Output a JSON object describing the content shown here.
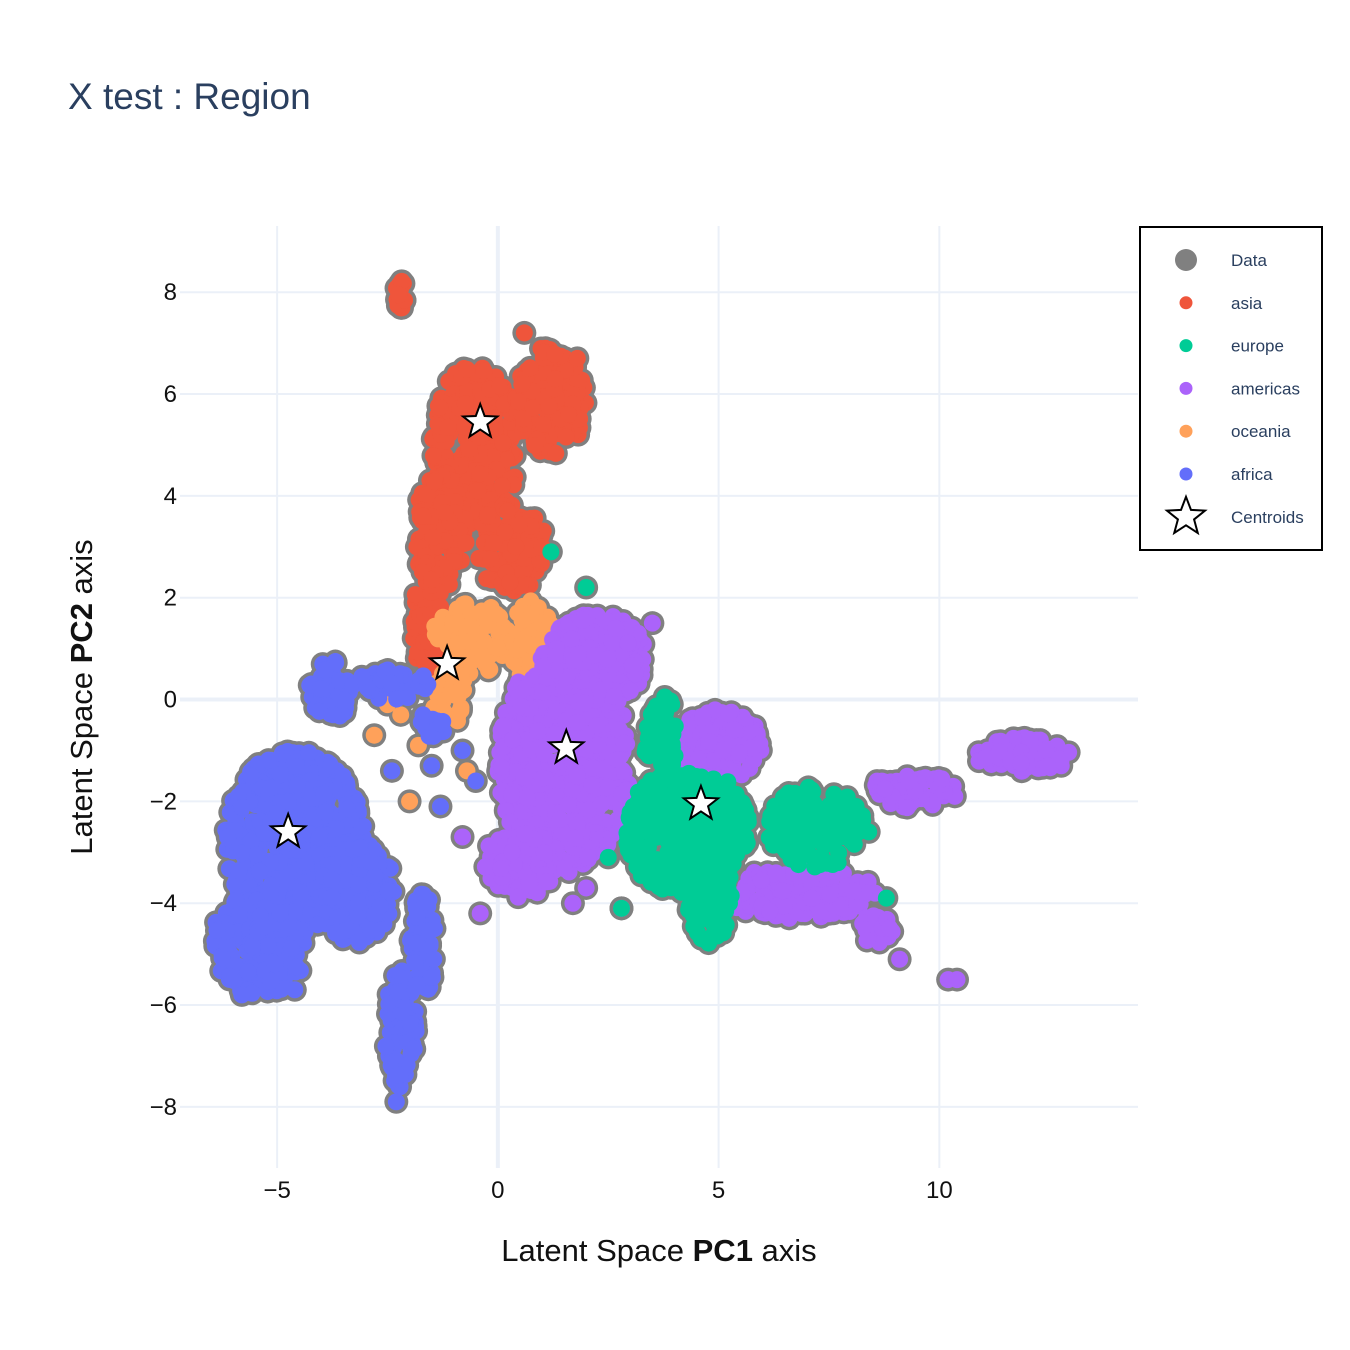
{
  "chart_data": {
    "type": "scatter",
    "title": "X test : Region",
    "xlabel": {
      "pre": "Latent Space ",
      "bold": "PC1",
      "post": " axis"
    },
    "ylabel": {
      "pre": "Latent Space ",
      "bold": "PC2",
      "post": " axis"
    },
    "xlim": [
      -7.2,
      14.5
    ],
    "ylim": [
      -9.2,
      9.3
    ],
    "xticks": [
      {
        "value": -5,
        "label": "−5"
      },
      {
        "value": 0,
        "label": "0"
      },
      {
        "value": 5,
        "label": "5"
      },
      {
        "value": 10,
        "label": "10"
      }
    ],
    "yticks": [
      {
        "value": 8,
        "label": "8"
      },
      {
        "value": 6,
        "label": "6"
      },
      {
        "value": 4,
        "label": "4"
      },
      {
        "value": 2,
        "label": "2"
      },
      {
        "value": 0,
        "label": "0"
      },
      {
        "value": -2,
        "label": "−2"
      },
      {
        "value": -4,
        "label": "−4"
      },
      {
        "value": -6,
        "label": "−6"
      },
      {
        "value": -8,
        "label": "−8"
      }
    ],
    "grid": true,
    "legend_position": "top-right",
    "data_outline_color": "#808080",
    "series": [
      {
        "name": "asia",
        "color": "#ef553b",
        "regions": [
          {
            "kind": "ellipse",
            "cx": -0.5,
            "cy": 5.0,
            "rx": 1.0,
            "ry": 1.6
          },
          {
            "kind": "ellipse",
            "cx": 1.2,
            "cy": 5.9,
            "rx": 0.8,
            "ry": 1.1
          },
          {
            "kind": "ellipse",
            "cx": -1.3,
            "cy": 3.3,
            "rx": 0.6,
            "ry": 1.2
          },
          {
            "kind": "ellipse",
            "cx": -1.6,
            "cy": 1.6,
            "rx": 0.35,
            "ry": 1.1
          },
          {
            "kind": "ellipse",
            "cx": 0.3,
            "cy": 3.0,
            "rx": 0.8,
            "ry": 0.9
          },
          {
            "kind": "ellipse",
            "cx": -2.2,
            "cy": 7.9,
            "rx": 0.15,
            "ry": 0.35
          }
        ],
        "points": [
          [
            -1.7,
            3.6
          ],
          [
            1.0,
            3.0
          ],
          [
            0.6,
            7.2
          ],
          [
            1.8,
            6.7
          ]
        ]
      },
      {
        "name": "oceania",
        "color": "#ffa15a",
        "regions": [
          {
            "kind": "ellipse",
            "cx": -0.6,
            "cy": 1.2,
            "rx": 0.9,
            "ry": 0.7
          },
          {
            "kind": "ellipse",
            "cx": 0.8,
            "cy": 1.1,
            "rx": 0.5,
            "ry": 0.9
          },
          {
            "kind": "ellipse",
            "cx": -1.1,
            "cy": 0.1,
            "rx": 0.4,
            "ry": 0.6
          }
        ],
        "points": [
          [
            -2.8,
            -0.7
          ],
          [
            -2.2,
            -0.3
          ],
          [
            -2.0,
            -2.0
          ],
          [
            -1.8,
            -0.9
          ],
          [
            -0.7,
            -1.4
          ],
          [
            0.8,
            -0.5
          ],
          [
            1.2,
            -0.4
          ],
          [
            -2.5,
            -0.1
          ]
        ]
      },
      {
        "name": "americas",
        "color": "#ab63fa",
        "regions": [
          {
            "kind": "ellipse",
            "cx": 1.5,
            "cy": -1.2,
            "rx": 1.5,
            "ry": 2.2
          },
          {
            "kind": "ellipse",
            "cx": 2.2,
            "cy": 0.8,
            "rx": 1.2,
            "ry": 0.9
          },
          {
            "kind": "ellipse",
            "cx": 0.5,
            "cy": -3.2,
            "rx": 0.8,
            "ry": 0.7
          },
          {
            "kind": "ellipse",
            "cx": 5.0,
            "cy": -0.9,
            "rx": 1.0,
            "ry": 0.7
          },
          {
            "kind": "ellipse",
            "cx": 6.8,
            "cy": -3.8,
            "rx": 1.8,
            "ry": 0.5
          },
          {
            "kind": "ellipse",
            "cx": 9.4,
            "cy": -1.8,
            "rx": 1.0,
            "ry": 0.35
          },
          {
            "kind": "ellipse",
            "cx": 11.9,
            "cy": -1.1,
            "rx": 1.1,
            "ry": 0.35
          },
          {
            "kind": "ellipse",
            "cx": 8.6,
            "cy": -4.5,
            "rx": 0.4,
            "ry": 0.3
          }
        ],
        "points": [
          [
            3.5,
            1.5
          ],
          [
            -0.4,
            -4.2
          ],
          [
            1.7,
            -4.0
          ],
          [
            2.0,
            -3.7
          ],
          [
            9.1,
            -5.1
          ],
          [
            10.2,
            -5.5
          ],
          [
            10.4,
            -5.5
          ],
          [
            -0.8,
            -2.7
          ],
          [
            2.8,
            -4.1
          ]
        ]
      },
      {
        "name": "europe",
        "color": "#00cc96",
        "regions": [
          {
            "kind": "ellipse",
            "cx": 4.3,
            "cy": -2.6,
            "rx": 1.4,
            "ry": 1.3
          },
          {
            "kind": "ellipse",
            "cx": 4.8,
            "cy": -3.9,
            "rx": 0.5,
            "ry": 0.9
          },
          {
            "kind": "ellipse",
            "cx": 7.2,
            "cy": -2.5,
            "rx": 1.1,
            "ry": 0.8
          },
          {
            "kind": "ellipse",
            "cx": 3.7,
            "cy": -0.7,
            "rx": 0.4,
            "ry": 0.8
          }
        ],
        "points": [
          [
            2.0,
            2.2
          ],
          [
            1.2,
            2.9
          ],
          [
            8.8,
            -3.9
          ],
          [
            2.8,
            -4.1
          ],
          [
            8.4,
            -2.6
          ],
          [
            2.5,
            -3.1
          ]
        ]
      },
      {
        "name": "africa",
        "color": "#636efa",
        "regions": [
          {
            "kind": "ellipse",
            "cx": -4.6,
            "cy": -2.8,
            "rx": 1.6,
            "ry": 1.8
          },
          {
            "kind": "ellipse",
            "cx": -5.4,
            "cy": -4.8,
            "rx": 1.1,
            "ry": 1.0
          },
          {
            "kind": "ellipse",
            "cx": -3.2,
            "cy": -3.8,
            "rx": 0.9,
            "ry": 1.0
          },
          {
            "kind": "ellipse",
            "cx": -2.2,
            "cy": -6.5,
            "rx": 0.35,
            "ry": 1.2
          },
          {
            "kind": "ellipse",
            "cx": -1.7,
            "cy": -4.8,
            "rx": 0.3,
            "ry": 1.0
          },
          {
            "kind": "ellipse",
            "cx": -3.8,
            "cy": 0.2,
            "rx": 0.5,
            "ry": 0.6
          },
          {
            "kind": "ellipse",
            "cx": -2.4,
            "cy": 0.3,
            "rx": 0.9,
            "ry": 0.3
          },
          {
            "kind": "ellipse",
            "cx": -1.5,
            "cy": -0.5,
            "rx": 0.3,
            "ry": 0.3
          }
        ],
        "points": [
          [
            -2.4,
            -1.4
          ],
          [
            -1.3,
            -2.1
          ],
          [
            -2.3,
            -7.9
          ],
          [
            -1.5,
            -1.3
          ],
          [
            -0.5,
            -1.6
          ],
          [
            -4.6,
            -5.7
          ],
          [
            -5.8,
            -5.8
          ],
          [
            -0.8,
            -1.0
          ]
        ]
      }
    ],
    "centroids": [
      {
        "name": "asia",
        "x": -0.4,
        "y": 5.45
      },
      {
        "name": "oceania",
        "x": -1.15,
        "y": 0.7
      },
      {
        "name": "americas",
        "x": 1.55,
        "y": -0.95
      },
      {
        "name": "europe",
        "x": 4.6,
        "y": -2.05
      },
      {
        "name": "africa",
        "x": -4.75,
        "y": -2.6
      }
    ],
    "legend": [
      {
        "label": "Data",
        "kind": "data",
        "color": "#808080"
      },
      {
        "label": "asia",
        "kind": "dot",
        "color": "#ef553b"
      },
      {
        "label": "europe",
        "kind": "dot",
        "color": "#00cc96"
      },
      {
        "label": "americas",
        "kind": "dot",
        "color": "#ab63fa"
      },
      {
        "label": "oceania",
        "kind": "dot",
        "color": "#ffa15a"
      },
      {
        "label": "africa",
        "kind": "dot",
        "color": "#636efa"
      },
      {
        "label": "Centroids",
        "kind": "star",
        "color": "#ffffff"
      }
    ]
  }
}
